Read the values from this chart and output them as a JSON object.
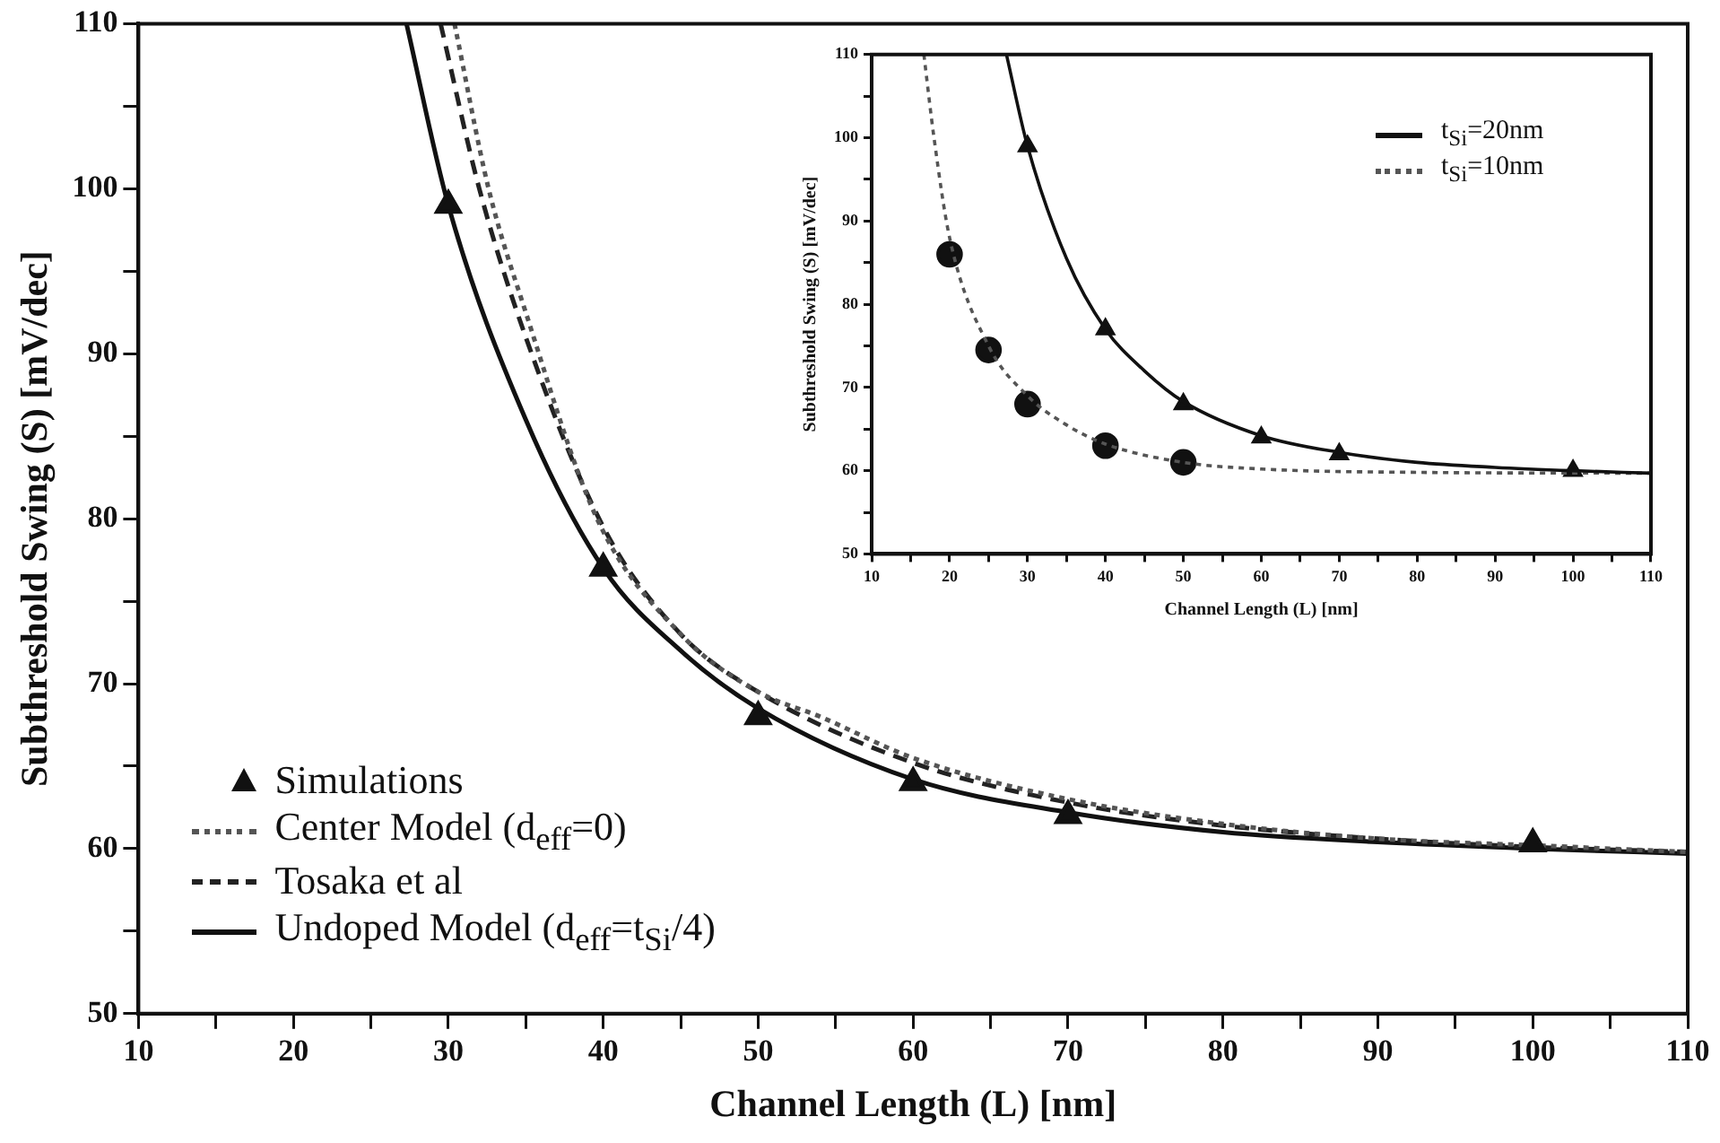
{
  "chart_data": [
    {
      "type": "line",
      "xlabel": "Channel Length (L) [nm]",
      "ylabel": "Subthreshold Swing (S) [mV/dec]",
      "xlim": [
        10,
        110
      ],
      "ylim": [
        50,
        110
      ],
      "xticks": [
        10,
        {
          "value": 15,
          "label": null
        },
        20,
        {
          "value": 25,
          "label": null
        },
        30,
        {
          "value": 35,
          "label": null
        },
        40,
        {
          "value": 45,
          "label": null
        },
        50,
        {
          "value": 55,
          "label": null
        },
        60,
        {
          "value": 65,
          "label": null
        },
        70,
        {
          "value": 75,
          "label": null
        },
        80,
        {
          "value": 85,
          "label": null
        },
        90,
        {
          "value": 95,
          "label": null
        },
        100,
        {
          "value": 105,
          "label": null
        },
        110
      ],
      "yticks": [
        50,
        {
          "value": 55,
          "label": null
        },
        60,
        {
          "value": 65,
          "label": null
        },
        70,
        {
          "value": 75,
          "label": null
        },
        80,
        {
          "value": 85,
          "label": null
        },
        90,
        {
          "value": 95,
          "label": null
        },
        100,
        {
          "value": 105,
          "label": null
        },
        110
      ],
      "grid": false,
      "legend": "bottom left",
      "series": [
        {
          "name": "Simulations",
          "type": "scatter",
          "marker": "triangle",
          "color": "#111111",
          "x": [
            30,
            40,
            50,
            60,
            70,
            100
          ],
          "values": [
            99,
            77,
            68,
            64,
            62,
            60.3
          ]
        },
        {
          "name": "Center Model (d$_{eff}$=0)",
          "type": "line",
          "marker": "none",
          "line_style": "dotted",
          "color": "#555555",
          "x": [
            30.4,
            32.6,
            35,
            39.6,
            45,
            50,
            54,
            60,
            70,
            80,
            90,
            100,
            110
          ],
          "values": [
            110,
            100,
            92.5,
            80,
            73,
            69.5,
            68,
            65.5,
            63,
            61.5,
            60.6,
            60.2,
            59.8
          ]
        },
        {
          "name": "Tosaka et al",
          "type": "line",
          "marker": "none",
          "line_style": "dashed",
          "color": "#222222",
          "x": [
            29.5,
            32,
            35,
            40,
            45,
            50,
            60,
            70,
            80,
            90,
            100,
            110
          ],
          "values": [
            110,
            100,
            91,
            79.5,
            73,
            69.5,
            65.2,
            62.8,
            61.4,
            60.6,
            60.1,
            59.8
          ]
        },
        {
          "name": "Undoped Model (d$_{eff}$=t$_{Si}$/4)",
          "type": "line",
          "marker": "none",
          "line_style": "solid",
          "color": "#111111",
          "x": [
            27.3,
            30,
            35,
            40,
            45,
            50,
            60,
            70,
            80,
            90,
            100,
            110
          ],
          "values": [
            110,
            99,
            86,
            77,
            72,
            68.5,
            64.2,
            62.2,
            61,
            60.4,
            60,
            59.7
          ]
        }
      ]
    },
    {
      "type": "line",
      "xlabel": "Channel Length (L) [nm]",
      "ylabel": "Subthreshold Swing (S) [mV/dec]",
      "xlim": [
        10,
        110
      ],
      "ylim": [
        50,
        110
      ],
      "xticks": [
        10,
        {
          "value": 15,
          "label": null
        },
        20,
        {
          "value": 25,
          "label": null
        },
        30,
        {
          "value": 35,
          "label": null
        },
        40,
        {
          "value": 45,
          "label": null
        },
        50,
        {
          "value": 55,
          "label": null
        },
        60,
        {
          "value": 65,
          "label": null
        },
        70,
        {
          "value": 75,
          "label": null
        },
        80,
        {
          "value": 85,
          "label": null
        },
        90,
        {
          "value": 95,
          "label": null
        },
        100,
        {
          "value": 105,
          "label": null
        },
        110
      ],
      "yticks": [
        50,
        {
          "value": 55,
          "label": null
        },
        60,
        {
          "value": 65,
          "label": null
        },
        70,
        {
          "value": 75,
          "label": null
        },
        80,
        {
          "value": 85,
          "label": null
        },
        90,
        {
          "value": 95,
          "label": null
        },
        100,
        {
          "value": 105,
          "label": null
        },
        110
      ],
      "grid": false,
      "legend": "top right",
      "series": [
        {
          "name": "t$_{Si}$=20nm",
          "type": "line",
          "marker": "none",
          "line_style": "solid",
          "color": "#111111",
          "x": [
            27.3,
            30,
            35,
            40,
            45,
            50,
            60,
            70,
            80,
            90,
            100,
            110
          ],
          "values": [
            110,
            99,
            85.5,
            77,
            72,
            68.3,
            64.2,
            62.2,
            61,
            60.4,
            60,
            59.7
          ]
        },
        {
          "name": "t$_{Si}$=10nm",
          "type": "line",
          "marker": "none",
          "line_style": "dotted",
          "color": "#555555",
          "x": [
            16.7,
            18,
            20,
            25,
            30,
            35,
            40,
            50,
            60,
            80,
            110
          ],
          "values": [
            110,
            100,
            88,
            75,
            69,
            65.5,
            63.2,
            61,
            60.2,
            59.8,
            59.7
          ]
        },
        {
          "type": "scatter",
          "marker": "triangle",
          "color": "#111111",
          "x": [
            30,
            40,
            50,
            60,
            70,
            100
          ],
          "values": [
            99,
            77,
            68,
            64,
            62,
            60
          ]
        },
        {
          "type": "scatter",
          "marker": "circle",
          "color": "#111111",
          "x": [
            20,
            25,
            30,
            40,
            50
          ],
          "values": [
            86,
            74.5,
            68,
            63,
            61
          ]
        }
      ]
    }
  ]
}
